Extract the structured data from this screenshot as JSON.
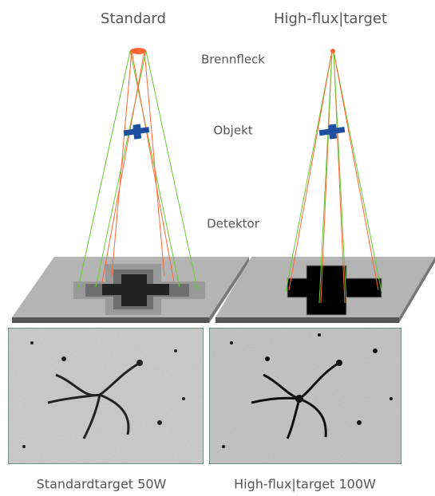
{
  "titles": {
    "left": "Standard",
    "right": "High-flux|target"
  },
  "labels": {
    "focal_spot": "Brennfleck",
    "object": "Objekt",
    "detector": "Detektor"
  },
  "captions": {
    "left": "Standardtarget 50W",
    "right": "High-flux|target 100W"
  }
}
